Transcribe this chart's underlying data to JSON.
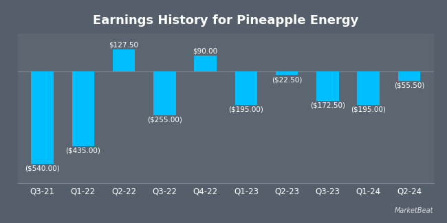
{
  "title": "Earnings History for Pineapple Energy",
  "categories": [
    "Q3-21",
    "Q1-22",
    "Q2-22",
    "Q3-22",
    "Q4-22",
    "Q1-23",
    "Q2-23",
    "Q3-23",
    "Q1-24",
    "Q2-24"
  ],
  "values": [
    -540.0,
    -435.0,
    127.5,
    -255.0,
    90.0,
    -195.0,
    -22.5,
    -172.5,
    -195.0,
    -55.5
  ],
  "bar_color": "#00bfff",
  "bg_color": "#555f6b",
  "plot_bg_color": "#5c6670",
  "text_color": "#ffffff",
  "title_fontsize": 13,
  "tick_fontsize": 8.5,
  "label_fontsize": 7.5,
  "ylim": [
    -650,
    220
  ]
}
